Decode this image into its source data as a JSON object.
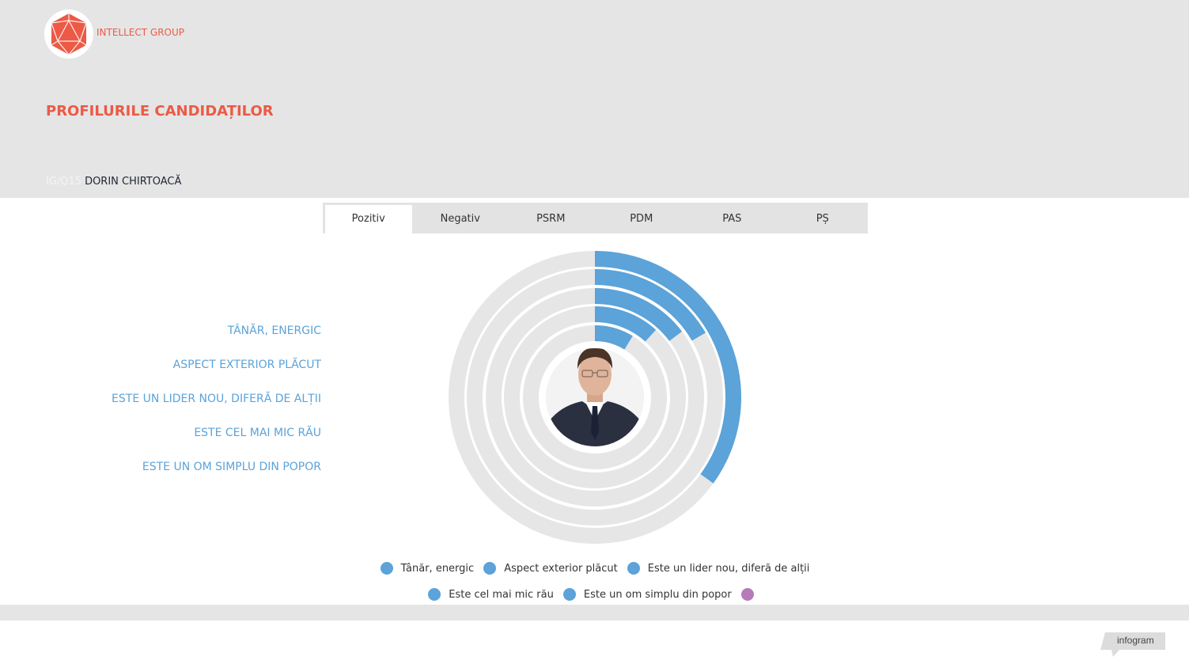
{
  "brand": {
    "name": "INTELLECT GROUP",
    "logo_icon": "icosahedron-logo-icon",
    "accent": "#ec5a45"
  },
  "page": {
    "title": "PROFILURILE CANDIDAȚILOR"
  },
  "subtitle": {
    "code": "IG/Q15",
    "candidate": "DORIN CHIRTOACĂ"
  },
  "tabs": [
    {
      "label": "Pozitiv",
      "active": true
    },
    {
      "label": "Negativ",
      "active": false
    },
    {
      "label": "PSRM",
      "active": false
    },
    {
      "label": "PDM",
      "active": false
    },
    {
      "label": "PAS",
      "active": false
    },
    {
      "label": "PȘ",
      "active": false
    }
  ],
  "chart_data": {
    "type": "radial-bar",
    "center_image": "candidate-photo",
    "track_color": "#e6e6e6",
    "categories": [
      "TÂNĂR, ENERGIC",
      "ASPECT EXTERIOR PLĂCUT",
      "ESTE UN LIDER NOU, DIFERĂ DE ALȚII",
      "ESTE CEL MAI MIC RĂU",
      "ESTE UN OM SIMPLU DIN POPOR"
    ],
    "series": [
      {
        "name": "Tânăr, energic",
        "color": "#5ba3d9",
        "value": 0.35
      },
      {
        "name": "Aspect exterior plăcut",
        "color": "#5ba3d9",
        "value": 0.166
      },
      {
        "name": "Este un lider nou, diferă de alții",
        "color": "#5ba3d9",
        "value": 0.147
      },
      {
        "name": "Este cel mai mic rău",
        "color": "#5ba3d9",
        "value": 0.117
      },
      {
        "name": "Este un om simplu din popor",
        "color": "#5ba3d9",
        "value": 0.088
      },
      {
        "name": "",
        "color": "#b57cb8",
        "value": null
      }
    ]
  },
  "footer": {
    "badge": "infogram"
  }
}
